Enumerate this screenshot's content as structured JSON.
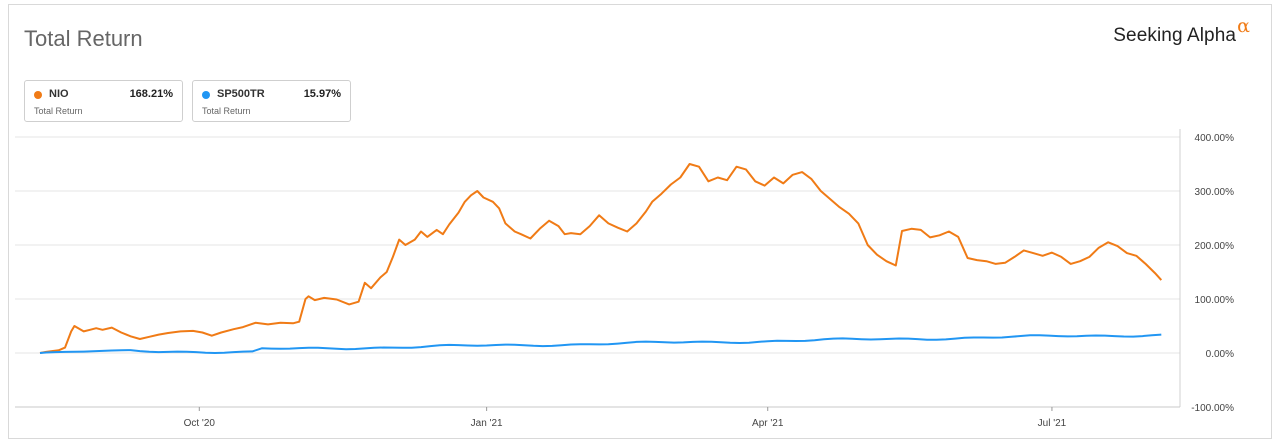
{
  "header": {
    "title": "Total Return",
    "brand": "Seeking Alpha",
    "brand_mark": "α"
  },
  "legend": [
    {
      "name": "NIO",
      "value": "168.21%",
      "sub": "Total Return",
      "color": "#f07b16"
    },
    {
      "name": "SP500TR",
      "value": "15.97%",
      "sub": "Total Return",
      "color": "#2196f3"
    }
  ],
  "chart_data": {
    "type": "line",
    "title": "Total Return",
    "xlabel": "",
    "ylabel": "",
    "ylim": [
      -100,
      400
    ],
    "y_ticks": [
      {
        "value": 400,
        "label": "400.00%"
      },
      {
        "value": 300,
        "label": "300.00%"
      },
      {
        "value": 200,
        "label": "200.00%"
      },
      {
        "value": 100,
        "label": "100.00%"
      },
      {
        "value": 0,
        "label": "0.00%"
      },
      {
        "value": -100,
        "label": "-100.00%"
      }
    ],
    "x_range": [
      "2020-08-11",
      "2021-08-11"
    ],
    "x_ticks": [
      {
        "date": "2020-10-01",
        "label": "Oct '20"
      },
      {
        "date": "2021-01-01",
        "label": "Jan '21"
      },
      {
        "date": "2021-04-01",
        "label": "Apr '21"
      },
      {
        "date": "2021-07-01",
        "label": "Jul '21"
      }
    ],
    "grid": true,
    "legend_position": "top-left",
    "series": [
      {
        "name": "NIO",
        "color": "#f07b16",
        "points": [
          [
            "2020-08-11",
            0
          ],
          [
            "2020-08-13",
            2
          ],
          [
            "2020-08-17",
            5
          ],
          [
            "2020-08-19",
            10
          ],
          [
            "2020-08-21",
            40
          ],
          [
            "2020-08-22",
            50
          ],
          [
            "2020-08-25",
            40
          ],
          [
            "2020-08-27",
            43
          ],
          [
            "2020-08-29",
            46
          ],
          [
            "2020-08-31",
            43
          ],
          [
            "2020-09-03",
            47
          ],
          [
            "2020-09-06",
            38
          ],
          [
            "2020-09-09",
            31
          ],
          [
            "2020-09-12",
            26
          ],
          [
            "2020-09-15",
            30
          ],
          [
            "2020-09-18",
            34
          ],
          [
            "2020-09-21",
            37
          ],
          [
            "2020-09-25",
            40
          ],
          [
            "2020-09-29",
            41
          ],
          [
            "2020-10-02",
            38
          ],
          [
            "2020-10-05",
            32
          ],
          [
            "2020-10-08",
            38
          ],
          [
            "2020-10-12",
            44
          ],
          [
            "2020-10-15",
            48
          ],
          [
            "2020-10-19",
            56
          ],
          [
            "2020-10-23",
            53
          ],
          [
            "2020-10-27",
            56
          ],
          [
            "2020-10-31",
            55
          ],
          [
            "2020-11-02",
            58
          ],
          [
            "2020-11-04",
            100
          ],
          [
            "2020-11-05",
            105
          ],
          [
            "2020-11-07",
            98
          ],
          [
            "2020-11-10",
            102
          ],
          [
            "2020-11-14",
            99
          ],
          [
            "2020-11-18",
            90
          ],
          [
            "2020-11-21",
            95
          ],
          [
            "2020-11-23",
            130
          ],
          [
            "2020-11-25",
            120
          ],
          [
            "2020-11-28",
            140
          ],
          [
            "2020-11-30",
            150
          ],
          [
            "2020-12-02",
            178
          ],
          [
            "2020-12-04",
            210
          ],
          [
            "2020-12-06",
            200
          ],
          [
            "2020-12-09",
            210
          ],
          [
            "2020-12-11",
            225
          ],
          [
            "2020-12-13,",
            215
          ],
          [
            "2020-12-16",
            228
          ],
          [
            "2020-12-18",
            220
          ],
          [
            "2020-12-20",
            238
          ],
          [
            "2020-12-23",
            260
          ],
          [
            "2020-12-25",
            280
          ],
          [
            "2020-12-27",
            292
          ],
          [
            "2020-12-29",
            300
          ],
          [
            "2020-12-31",
            288
          ],
          [
            "2021-01-03",
            280
          ],
          [
            "2021-01-05",
            268
          ],
          [
            "2021-01-07",
            240
          ],
          [
            "2021-01-10",
            225
          ],
          [
            "2021-01-12",
            220
          ],
          [
            "2021-01-15",
            212
          ],
          [
            "2021-01-18",
            230
          ],
          [
            "2021-01-21",
            245
          ],
          [
            "2021-01-24",
            235
          ],
          [
            "2021-01-26",
            220
          ],
          [
            "2021-01-28",
            222
          ],
          [
            "2021-01-31",
            220
          ],
          [
            "2021-02-03",
            235
          ],
          [
            "2021-02-06",
            255
          ],
          [
            "2021-02-09",
            240
          ],
          [
            "2021-02-12",
            232
          ],
          [
            "2021-02-15",
            225
          ],
          [
            "2021-02-18",
            240
          ],
          [
            "2021-02-21",
            262
          ],
          [
            "2021-02-23",
            280
          ],
          [
            "2021-02-26",
            295
          ],
          [
            "2021-03-01",
            312
          ],
          [
            "2021-03-04",
            325
          ],
          [
            "2021-03-07",
            350
          ],
          [
            "2021-03-10",
            345
          ],
          [
            "2021-03-13",
            318
          ],
          [
            "2021-03-16",
            325
          ],
          [
            "2021-03-19",
            320
          ],
          [
            "2021-03-22",
            345
          ],
          [
            "2021-03-25",
            340
          ],
          [
            "2021-03-28",
            318
          ],
          [
            "2021-03-31",
            310
          ],
          [
            "2021-04-03",
            325
          ],
          [
            "2021-04-06",
            314
          ],
          [
            "2021-04-09",
            330
          ],
          [
            "2021-04-12",
            335
          ],
          [
            "2021-04-15",
            322
          ],
          [
            "2021-04-18",
            300
          ],
          [
            "2021-04-21",
            285
          ],
          [
            "2021-04-24",
            270
          ],
          [
            "2021-04-27",
            258
          ],
          [
            "2021-04-30",
            240
          ],
          [
            "2021-05-03",
            200
          ],
          [
            "2021-05-06",
            182
          ],
          [
            "2021-05-09",
            170
          ],
          [
            "2021-05-12",
            162
          ],
          [
            "2021-05-14,",
            226
          ],
          [
            "2021-05-17",
            230
          ],
          [
            "2021-05-20",
            228
          ],
          [
            "2021-05-23",
            214
          ],
          [
            "2021-05-26",
            218
          ],
          [
            "2021-05-29",
            225
          ],
          [
            "2021-06-01",
            215
          ],
          [
            "2021-06-04",
            176
          ],
          [
            "2021-06-07",
            172
          ],
          [
            "2021-06-10",
            170
          ],
          [
            "2021-06-13",
            165
          ],
          [
            "2021-06-16",
            167
          ],
          [
            "2021-06-19",
            178
          ],
          [
            "2021-06-22",
            190
          ],
          [
            "2021-06-25",
            185
          ],
          [
            "2021-06-28",
            180
          ],
          [
            "2021-07-01",
            186
          ],
          [
            "2021-07-04",
            178
          ],
          [
            "2021-07-07",
            165
          ],
          [
            "2021-07-10",
            170
          ],
          [
            "2021-07-13",
            178
          ],
          [
            "2021-07-16",
            195
          ],
          [
            "2021-07-19",
            205
          ],
          [
            "2021-07-22",
            198
          ],
          [
            "2021-07-25",
            185
          ],
          [
            "2021-07-28",
            180
          ],
          [
            "2021-07-31",
            165
          ],
          [
            "2021-08-03",
            148
          ],
          [
            "2021-08-05",
            135
          ]
        ]
      },
      {
        "name": "SP500TR",
        "color": "#2196f3",
        "points": []
      }
    ]
  }
}
